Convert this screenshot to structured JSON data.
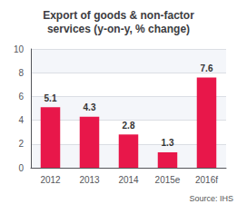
{
  "chart_data": {
    "type": "bar",
    "title": "Export of goods & non-factor\nservices (y-on-y, % change)",
    "annotations": [
      "Source: IHS"
    ],
    "categories": [
      "2012",
      "2013",
      "2014",
      "2015e",
      "2016f"
    ],
    "values": [
      5.1,
      4.3,
      2.8,
      1.3,
      7.6
    ],
    "color": "#e8174a",
    "ylim": [
      0,
      10
    ],
    "yticks": [
      0,
      2,
      4,
      6,
      8,
      10
    ],
    "grid": true,
    "data_labels": true
  }
}
